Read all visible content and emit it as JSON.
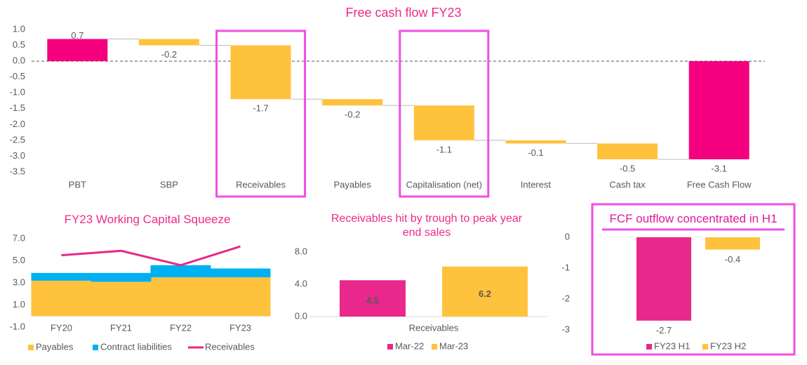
{
  "chart_data": [
    {
      "type": "waterfall",
      "title": "Free cash flow FY23",
      "categories": [
        "PBT",
        "SBP",
        "Receivables",
        "Payables",
        "Capitalisation (net)",
        "Interest",
        "Cash tax",
        "Free Cash Flow"
      ],
      "values": [
        0.7,
        -0.2,
        -1.7,
        -0.2,
        -1.1,
        -0.1,
        -0.5,
        -3.1
      ],
      "totals": [
        7
      ],
      "increase_color": "#f5007f",
      "decrease_color": "#ffc23d",
      "total_color": "#f5007f",
      "highlight": [
        2,
        4
      ],
      "highlight_color": "#f04ee6",
      "ylim": [
        -3.5,
        1.0
      ],
      "yticks": [
        {
          "value": 1.0,
          "label": "1.0"
        },
        0.5,
        {
          "value": 0.0,
          "label": "0.0"
        },
        -0.5,
        {
          "value": -1.0,
          "label": "-1.0"
        },
        -1.5,
        {
          "value": -2.0,
          "label": "-2.0"
        },
        -2.5,
        {
          "value": -3.0,
          "label": "-3.0"
        },
        -3.5
      ],
      "data_labels": true,
      "zero_line": "dashed"
    },
    {
      "type": "bar",
      "title": "FY23 Working Capital Squeeze",
      "stacked": true,
      "categories": [
        "FY20",
        "FY21",
        "FY22",
        "FY23"
      ],
      "series": [
        {
          "name": "Payables",
          "color": "#ffc23d",
          "values": [
            3.2,
            3.1,
            3.5,
            3.5
          ]
        },
        {
          "name": "Contract liabilities",
          "color": "#00b0f0",
          "values": [
            0.7,
            0.8,
            1.1,
            0.8
          ]
        },
        {
          "name": "Receivables",
          "color": "#e8288a",
          "type": "line",
          "values": [
            5.5,
            5.9,
            4.6,
            6.3
          ]
        }
      ],
      "ylim": [
        -1.0,
        7.0
      ],
      "yticks": [
        {
          "value": 7.0,
          "label": "7.0"
        },
        {
          "value": 5.0,
          "label": "5.0"
        },
        {
          "value": 3.0,
          "label": "3.0"
        },
        {
          "value": 1.0,
          "label": "1.0"
        },
        {
          "value": -1.0,
          "label": "-1.0"
        }
      ],
      "data_labels": false,
      "legend": "bottom"
    },
    {
      "type": "bar",
      "title": "Receivables hit by trough to peak year end sales",
      "categories": [
        "Receivables"
      ],
      "series": [
        {
          "name": "Mar-22",
          "color": "#e8288a",
          "values": [
            4.5
          ]
        },
        {
          "name": "Mar-23",
          "color": "#ffc23d",
          "values": [
            6.2
          ]
        }
      ],
      "ylim": [
        0.0,
        8.0
      ],
      "yticks": [
        {
          "value": 8.0,
          "label": "8.0"
        },
        {
          "value": 4.0,
          "label": "4.0"
        },
        {
          "value": 0.0,
          "label": "0.0"
        }
      ],
      "data_labels": true,
      "data_label_position": "inside",
      "legend": "bottom"
    },
    {
      "type": "bar",
      "title": "FCF outflow concentrated in H1",
      "series": [
        {
          "name": "FY23 H1",
          "color": "#e8288a",
          "values": [
            -2.7
          ]
        },
        {
          "name": "FY23 H2",
          "color": "#ffc23d",
          "values": [
            -0.4
          ]
        }
      ],
      "ylim": [
        -3,
        0
      ],
      "yticks": [
        0,
        -1,
        -2,
        -3
      ],
      "data_labels": true,
      "data_label_position": "outside",
      "legend": "bottom",
      "highlight": true,
      "highlight_color": "#f04ee6"
    }
  ]
}
